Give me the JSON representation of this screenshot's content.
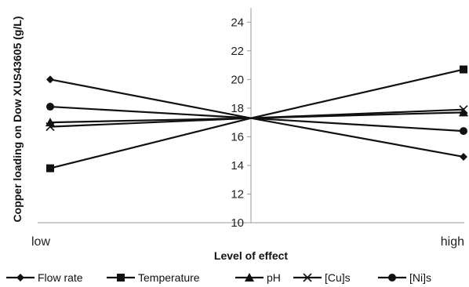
{
  "chart_data": {
    "type": "line",
    "title": "",
    "xlabel": "Level of effect",
    "ylabel": "Copper loading on Dow XUS43605 (g/L)",
    "categories": [
      "low",
      "high"
    ],
    "yticks": [
      "10",
      "12",
      "14",
      "16",
      "18",
      "20",
      "22",
      "24"
    ],
    "ylim": [
      10,
      25
    ],
    "center_value": 17.3,
    "grid": false,
    "legend_position": "bottom",
    "series": [
      {
        "name": "Flow rate",
        "marker": "diamond",
        "values": [
          20.0,
          14.6
        ]
      },
      {
        "name": "Temperature",
        "marker": "square",
        "values": [
          13.8,
          20.7
        ]
      },
      {
        "name": "pH",
        "marker": "triangle",
        "values": [
          17.0,
          17.7
        ]
      },
      {
        "name": "[Cu]s",
        "marker": "x",
        "values": [
          16.7,
          17.9
        ]
      },
      {
        "name": "[Ni]s",
        "marker": "circle",
        "values": [
          18.1,
          16.4
        ]
      }
    ],
    "line_color": "#111111",
    "axis_color": "#999999"
  }
}
